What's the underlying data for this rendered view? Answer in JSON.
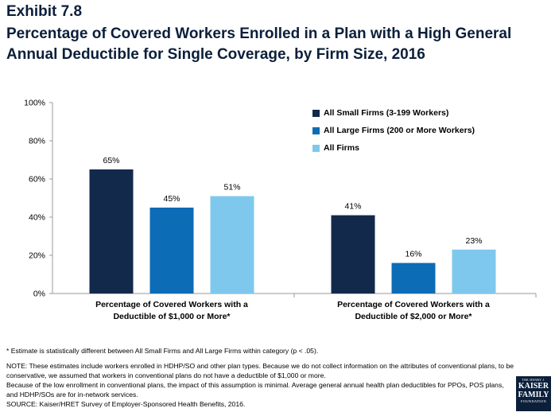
{
  "exhibit_label": "Exhibit 7.8",
  "title": "Percentage of Covered Workers Enrolled in a Plan with a High General Annual Deductible for Single Coverage, by Firm Size, 2016",
  "chart_data": {
    "type": "bar",
    "categories": [
      [
        "Percentage of Covered Workers with a",
        "Deductible of $1,000 or More*"
      ],
      [
        "Percentage of Covered Workers with a",
        "Deductible of $2,000 or More*"
      ]
    ],
    "series": [
      {
        "name": "All Small Firms (3-199 Workers)",
        "color": "#13294b",
        "values": [
          65,
          41
        ],
        "labels": [
          "65%",
          "41%"
        ]
      },
      {
        "name": "All Large Firms (200 or More Workers)",
        "color": "#0c6cb5",
        "values": [
          45,
          16
        ],
        "labels": [
          "45%",
          "16%"
        ]
      },
      {
        "name": "All Firms",
        "color": "#7ec8ee",
        "values": [
          51,
          23
        ],
        "labels": [
          "51%",
          "23%"
        ]
      }
    ],
    "ylim": [
      0,
      100
    ],
    "yticks": [
      0,
      20,
      40,
      60,
      80,
      100
    ],
    "ytick_labels": [
      "0%",
      "20%",
      "40%",
      "60%",
      "80%",
      "100%"
    ],
    "grid": false,
    "legend_position": "top-right"
  },
  "notes": {
    "asterisk": "* Estimate is statistically different between All Small Firms and All Large Firms within category (p < .05).",
    "note1": "NOTE:  These estimates include workers enrolled in HDHP/SO and other plan types. Because we do not collect information on the attributes of conventional plans, to be conservative, we assumed that workers in conventional plans do not have a deductible of $1,000 or more.",
    "note2": "Because of the low enrollment in conventional plans, the impact of this assumption is minimal. Average general annual health plan deductibles for PPOs, POS plans, and HDHP/SOs are for in-network services.",
    "source": "SOURCE:  Kaiser/HRET Survey of Employer-Sponsored Health Benefits, 2016."
  },
  "logo": {
    "top": "THE HENRY J.",
    "line1": "KAISER",
    "line2": "FAMILY",
    "bottom": "FOUNDATION"
  }
}
